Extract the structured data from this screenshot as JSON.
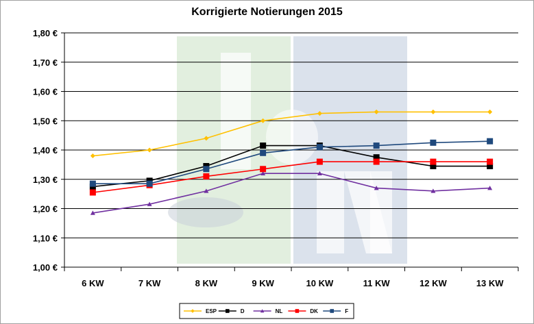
{
  "chart_data": {
    "type": "line",
    "title": "Korrigierte Notierungen 2015",
    "categories": [
      "6 KW",
      "7 KW",
      "8 KW",
      "9 KW",
      "10 KW",
      "11 KW",
      "12 KW",
      "13 KW"
    ],
    "ylim": [
      1.0,
      1.8
    ],
    "yticks": [
      "1,00 €",
      "1,10 €",
      "1,20 €",
      "1,30 €",
      "1,40 €",
      "1,50 €",
      "1,60 €",
      "1,70 €",
      "1,80 €"
    ],
    "grid": true,
    "legend_position": "bottom",
    "series": [
      {
        "name": "ESP",
        "color": "#FFC000",
        "marker": "diamond",
        "values": [
          1.38,
          1.4,
          1.44,
          1.5,
          1.525,
          1.53,
          1.53,
          1.53
        ]
      },
      {
        "name": "D",
        "color": "#000000",
        "marker": "square",
        "values": [
          1.275,
          1.295,
          1.345,
          1.415,
          1.415,
          1.375,
          1.345,
          1.345
        ]
      },
      {
        "name": "NL",
        "color": "#7030A0",
        "marker": "triangle",
        "values": [
          1.185,
          1.215,
          1.26,
          1.32,
          1.32,
          1.27,
          1.26,
          1.27
        ]
      },
      {
        "name": "DK",
        "color": "#FF0000",
        "marker": "square",
        "values": [
          1.255,
          1.28,
          1.31,
          1.335,
          1.36,
          1.36,
          1.36,
          1.36
        ]
      },
      {
        "name": "F",
        "color": "#1F497D",
        "marker": "square",
        "values": [
          1.285,
          1.285,
          1.335,
          1.39,
          1.41,
          1.415,
          1.425,
          1.43
        ]
      }
    ]
  }
}
